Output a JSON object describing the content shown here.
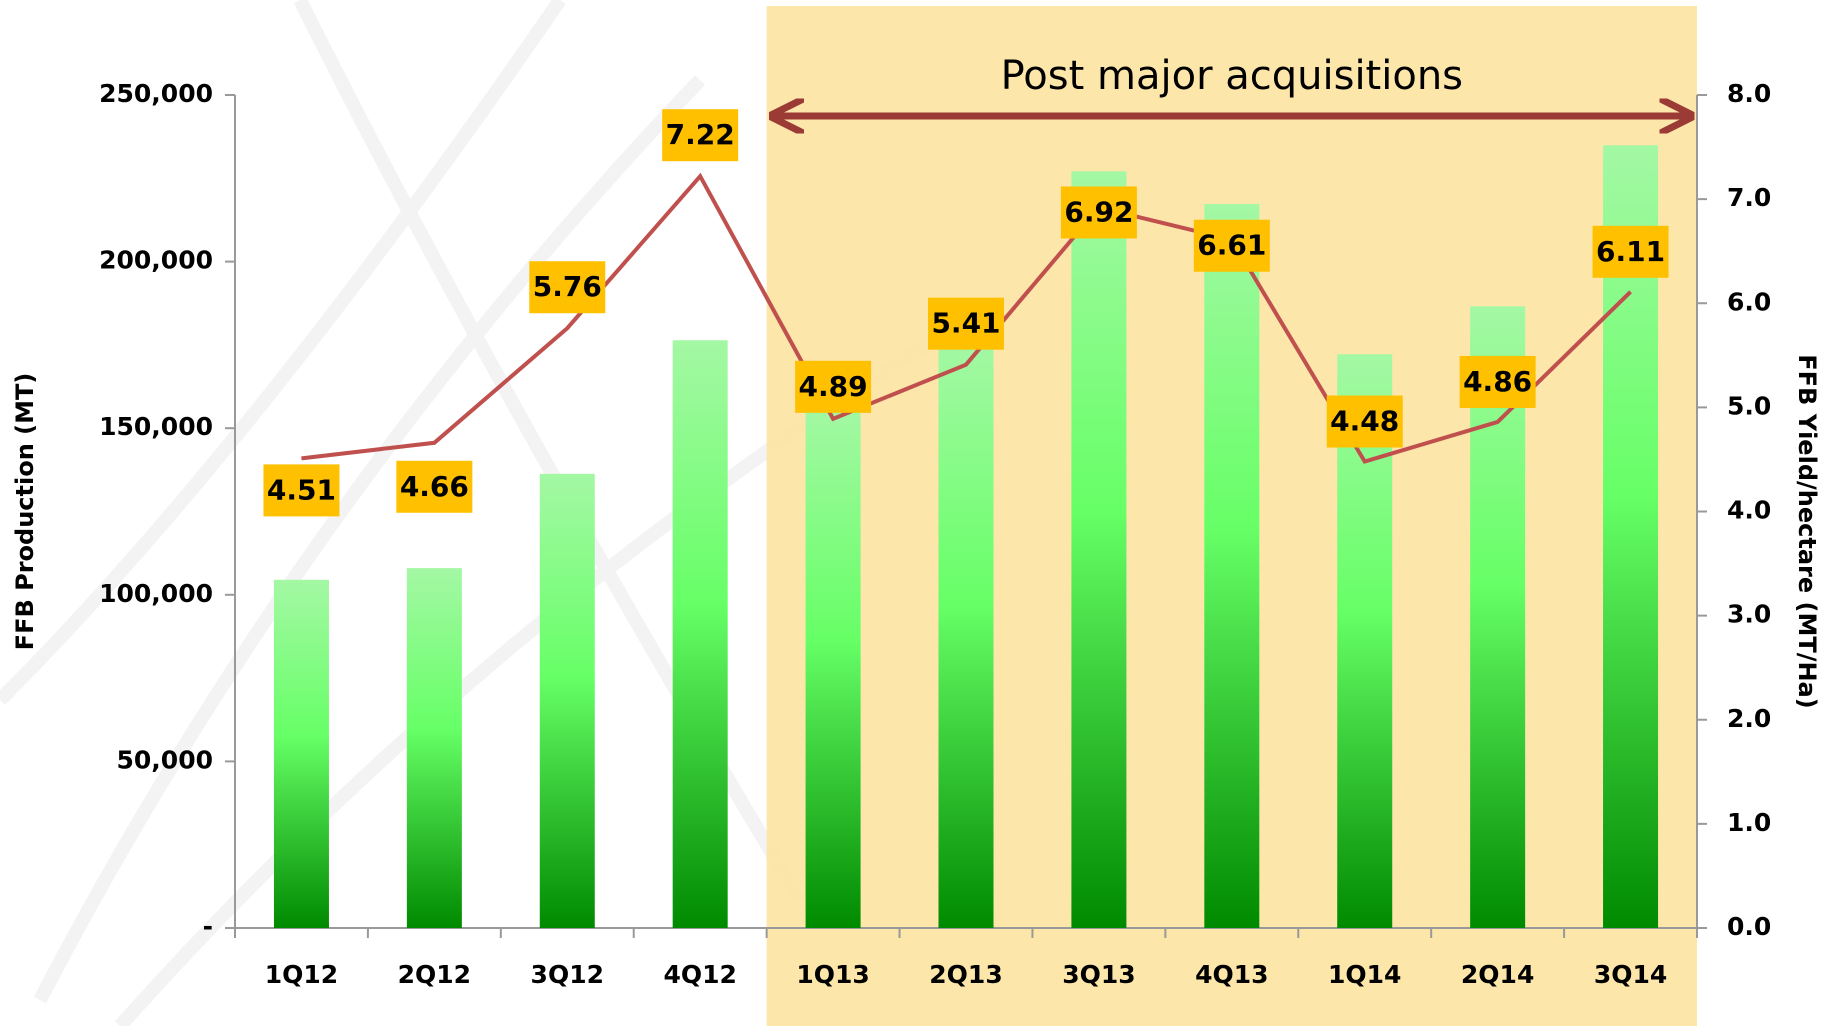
{
  "chart_data": {
    "type": "bar",
    "categories": [
      "1Q12",
      "2Q12",
      "3Q12",
      "4Q12",
      "1Q13",
      "2Q13",
      "3Q13",
      "4Q13",
      "1Q14",
      "2Q14",
      "3Q14"
    ],
    "series": [
      {
        "type": "bar",
        "color": "#1fd01f",
        "values": [
          104500,
          108000,
          136300,
          176400,
          157000,
          175500,
          227100,
          217300,
          172200,
          186600,
          234900
        ]
      },
      {
        "type": "line",
        "axis": "y2",
        "color": "#c0504d",
        "values": [
          4.51,
          4.66,
          5.76,
          7.22,
          4.89,
          5.41,
          6.92,
          6.61,
          4.48,
          4.86,
          6.11
        ]
      }
    ],
    "y_label": "FFB Production (MT)",
    "y2_label": "FFB Yield/hectare (MT/Ha)",
    "ylim": [
      0,
      250000
    ],
    "yticks": [
      {
        "value": 0,
        "label": "-"
      },
      {
        "value": 50000,
        "label": "50,000"
      },
      {
        "value": 100000,
        "label": "100,000"
      },
      {
        "value": 150000,
        "label": "150,000"
      },
      {
        "value": 200000,
        "label": "200,000"
      },
      {
        "value": 250000,
        "label": "250,000"
      }
    ],
    "y2lim": [
      0,
      8
    ],
    "y2ticks": [
      {
        "value": 0,
        "label": "0.0"
      },
      {
        "value": 1,
        "label": "1.0"
      },
      {
        "value": 2,
        "label": "2.0"
      },
      {
        "value": 3,
        "label": "3.0"
      },
      {
        "value": 4,
        "label": "4.0"
      },
      {
        "value": 5,
        "label": "5.0"
      },
      {
        "value": 6,
        "label": "6.0"
      },
      {
        "value": 7,
        "label": "7.0"
      },
      {
        "value": 8,
        "label": "8.0"
      }
    ],
    "annotation": {
      "text": "Post major acquisitions",
      "start": "1Q13",
      "end": "3Q14",
      "color": "#fde3a0",
      "arrow_color": "#9b3b36"
    }
  }
}
